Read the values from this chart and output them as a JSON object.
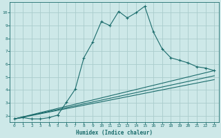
{
  "title": "",
  "xlabel": "Humidex (Indice chaleur)",
  "ylabel": "",
  "bg_color": "#cde8e8",
  "grid_color": "#aacccc",
  "line_color": "#1a6b6b",
  "xlim": [
    -0.5,
    23.5
  ],
  "ylim": [
    1.5,
    10.8
  ],
  "xticks": [
    0,
    1,
    2,
    3,
    4,
    5,
    6,
    7,
    8,
    9,
    10,
    11,
    12,
    13,
    14,
    15,
    16,
    17,
    18,
    19,
    20,
    21,
    22,
    23
  ],
  "yticks": [
    2,
    3,
    4,
    5,
    6,
    7,
    8,
    9,
    10
  ],
  "line1_x": [
    0,
    1,
    2,
    3,
    4,
    5,
    6,
    7,
    8,
    9,
    10,
    11,
    12,
    13,
    14,
    15,
    16,
    17,
    18,
    19,
    20,
    21,
    22,
    23
  ],
  "line1_y": [
    1.75,
    1.85,
    1.75,
    1.75,
    1.85,
    2.05,
    3.05,
    4.05,
    6.5,
    7.7,
    9.3,
    9.0,
    10.1,
    9.6,
    10.0,
    10.5,
    8.5,
    7.2,
    6.5,
    6.3,
    6.1,
    5.8,
    5.7,
    5.5
  ],
  "line2_x": [
    0,
    23
  ],
  "line2_y": [
    1.75,
    5.5
  ],
  "line3_x": [
    0,
    23
  ],
  "line3_y": [
    1.75,
    5.1
  ],
  "line4_x": [
    0,
    23
  ],
  "line4_y": [
    1.75,
    4.8
  ]
}
